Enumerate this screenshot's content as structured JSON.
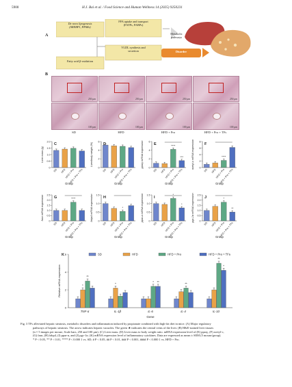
{
  "header": {
    "page_number": "5900",
    "journal_line": "H.J. Bai et al. / Food Science and Human Wellness 14 (2025) 9250231"
  },
  "panel_labels": {
    "A": "A",
    "B": "B"
  },
  "diagram": {
    "box_lipogenesis": "De novo lipogenesis\n(SREBP1, PPARs)",
    "box_ffa": "FFA uptake and transport\n(FATPs, FABPs)",
    "box_oxidation": "Fatty acid β-oxidation",
    "box_vldl": "VLDL synthesis and\nsecretion",
    "label_metabolic": "Metabolic\npathways",
    "label_disorder": "Disorder",
    "color_box": "#f3e7a7",
    "color_disorder": "#e98a2e",
    "color_liver_normal": "#b7403a",
    "color_liver_fatty": "#e2a86a"
  },
  "histology": {
    "groups": [
      "SD",
      "HFD",
      "HFD + Pro",
      "HFD + Pro + TFs"
    ],
    "scale_top": [
      "250 μm",
      "250 μm",
      "250 μm",
      "250 μm"
    ],
    "scale_bottom": [
      "100 μm",
      "100 μm",
      "100 μm",
      "100 μm"
    ]
  },
  "chart_data": [
    {
      "panel": "C",
      "type": "bar",
      "ylabel": "Liver mass (g)",
      "ylim": [
        0,
        2.0
      ],
      "yticks": [
        "0",
        "0.5",
        "1.0",
        "1.5",
        "2.0"
      ],
      "categories": [
        "SD",
        "HFD",
        "HFD + Pro",
        "HFD + Pro + TFs"
      ],
      "values": [
        1.32,
        1.42,
        1.48,
        1.28
      ],
      "xlabel": "Group"
    },
    {
      "panel": "D",
      "type": "bar",
      "ylabel": "Liver/body weight (%)",
      "ylim": [
        0,
        6
      ],
      "yticks": [
        "0",
        "2",
        "4",
        "6"
      ],
      "categories": [
        "SD",
        "HFD",
        "HFD + Pro",
        "HFD + Pro + TFs"
      ],
      "values": [
        5.2,
        5.0,
        4.9,
        4.6
      ],
      "xlabel": "Group"
    },
    {
      "panel": "E",
      "type": "bar",
      "ylabel": "pparγ mRNA expression",
      "ylim": [
        0,
        6
      ],
      "yticks": [
        "0",
        "2",
        "4",
        "6"
      ],
      "categories": [
        "SD",
        "HFD",
        "HFD + Pro",
        "HFD + Pro + TFs"
      ],
      "values": [
        1.0,
        0.9,
        4.2,
        1.6
      ],
      "annotations": [
        "****",
        "***"
      ],
      "xlabel": "Group"
    },
    {
      "panel": "F",
      "type": "bar",
      "ylabel": "acetyl-c mRNA expression",
      "ylim": [
        0,
        8
      ],
      "yticks": [
        "0",
        "2",
        "4",
        "6",
        "8"
      ],
      "categories": [
        "SD",
        "HFD",
        "HFD + Pro",
        "HFD + Pro + TFs"
      ],
      "values": [
        1.0,
        1.4,
        2.2,
        6.2
      ],
      "annotations": [
        "****"
      ],
      "xlabel": "Group"
    },
    {
      "panel": "G",
      "type": "bar",
      "ylabel": "fasn mRNA expression",
      "ylim": [
        0,
        2.5
      ],
      "yticks": [
        "0",
        "0.5",
        "1.0",
        "1.5",
        "2.0",
        "2.5"
      ],
      "categories": [
        "SD",
        "HFD",
        "HFD + Pro",
        "HFD + Pro + TFs"
      ],
      "values": [
        1.0,
        1.0,
        1.8,
        1.0
      ],
      "annotations": [
        "****"
      ],
      "xlabel": "Group"
    },
    {
      "panel": "H",
      "type": "bar",
      "ylabel": "fabp4 mRNA expression",
      "ylim": [
        0,
        1.5
      ],
      "yticks": [
        "0",
        "0.5",
        "1.0",
        "1.5"
      ],
      "categories": [
        "SD",
        "HFD",
        "HFD + Pro",
        "HFD + Pro + TFs"
      ],
      "values": [
        1.0,
        0.72,
        0.55,
        0.88
      ],
      "annotations": [
        "*"
      ],
      "xlabel": "Group"
    },
    {
      "panel": "I",
      "type": "bar",
      "ylabel": "ppar-α mRNA expression",
      "ylim": [
        0,
        1.5
      ],
      "yticks": [
        "0",
        "0.5",
        "1.0",
        "1.5"
      ],
      "categories": [
        "SD",
        "HFD",
        "HFD + Pro",
        "HFD + Pro + TFs"
      ],
      "values": [
        1.0,
        0.95,
        1.3,
        0.75
      ],
      "annotations": [
        "*",
        "*"
      ],
      "xlabel": "Group"
    },
    {
      "panel": "J",
      "type": "bar",
      "ylabel": "pgc-1α mRNA expression",
      "ylim": [
        0,
        2.5
      ],
      "yticks": [
        "0",
        "0.5",
        "1.0",
        "1.5",
        "2.0",
        "2.5"
      ],
      "categories": [
        "SD",
        "HFD",
        "HFD + Pro",
        "HFD + Pro + TFs"
      ],
      "values": [
        1.0,
        1.4,
        1.8,
        0.85
      ],
      "annotations": [
        "*",
        "**"
      ],
      "xlabel": "Group"
    },
    {
      "panel": "K",
      "type": "bar",
      "ylabel": "Relative mRNA expression",
      "xlabel": "Gene",
      "ylim": [
        0,
        6
      ],
      "yticks": [
        "0",
        "2",
        "4",
        "6"
      ],
      "categories": [
        "TNF-α",
        "IL-1β",
        "IL-6",
        "IL-4",
        "IL-10"
      ],
      "series": [
        {
          "name": "SD",
          "values": [
            1.0,
            1.0,
            1.0,
            1.0,
            1.0
          ]
        },
        {
          "name": "HFD",
          "values": [
            2.0,
            2.2,
            1.0,
            1.8,
            2.0
          ]
        },
        {
          "name": "HFD + Pro",
          "values": [
            3.0,
            1.3,
            2.4,
            2.2,
            5.0
          ]
        },
        {
          "name": "HFD + Pro + TFs",
          "values": [
            2.2,
            1.7,
            2.4,
            1.7,
            4.2
          ]
        }
      ],
      "annotations": [
        "*",
        "**",
        "*",
        "*",
        "**",
        "**",
        "**",
        "*"
      ]
    }
  ],
  "colors": {
    "SD": "#6f86cc",
    "HFD": "#e9a248",
    "HFD + Pro": "#5ea885",
    "HFD + Pro + TFs": "#4f6fc0"
  },
  "caption": {
    "lines": [
      "Fig. 3   TFs alleviated hepatic steatosis, metabolic disorders and inflammation induced by propionate combined with high-fat diet in mice. (A) Major regulatory",
      "pathways of hepatic steatosis. The arrow indicates hepatic vacuoles. The green ★ indicates the central veins of the liver. (B) H&E-stained liver tissues",
      "(n = 5 images per mouse, Scale bars, 250 and 100 μm). (C) Liver mass. (D) Liver mass to body weight ratio. mRNA expression level of (E) pparγ, (F) acetyl-c,",
      "(G) fasn, (H) fabp4, (I) ppar-α, and (J) pgc-1α. (K) mRNA expression level of inflammatory cytokines. Data are expressed as mean ± SEM (5 mouse/group).",
      "* P < 0.05, ** P < 0.01, **** P < 0.000 1 vs. SD; # P < 0.05, ## P < 0.01, ### P < 0.001, #### P < 0.000 1 vs. HFD + Pro."
    ]
  }
}
